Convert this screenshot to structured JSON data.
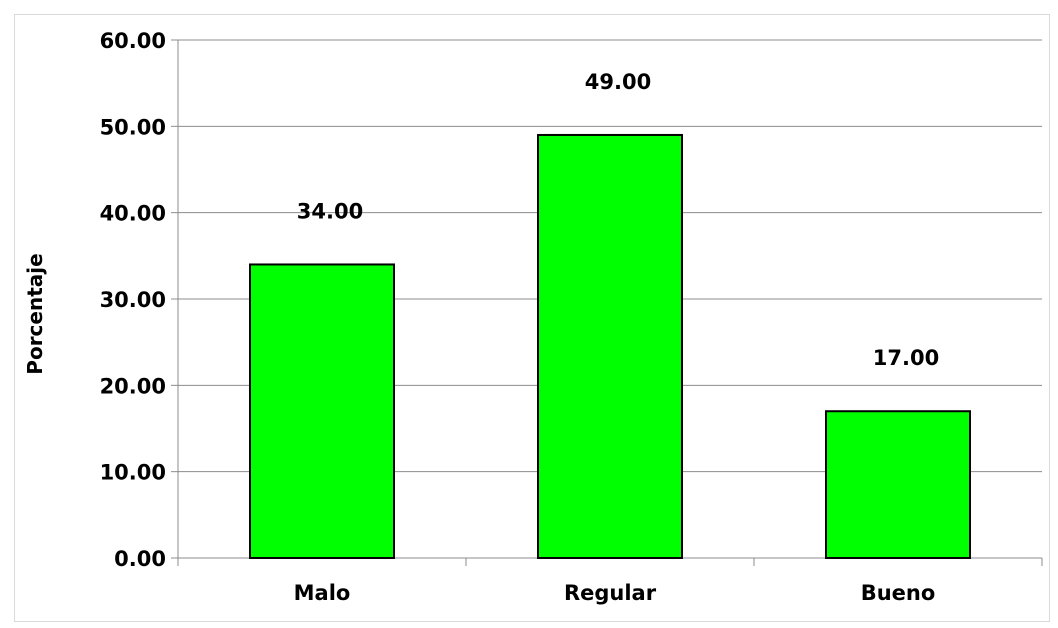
{
  "chart_data": {
    "type": "bar",
    "title": "",
    "xlabel": "",
    "ylabel": "Porcentaje",
    "categories": [
      "Malo",
      "Regular",
      "Bueno"
    ],
    "values": [
      34.0,
      49.0,
      17.0
    ],
    "value_labels": [
      "34.00",
      "49.00",
      "17.00"
    ],
    "ylim": [
      0,
      60
    ],
    "yticks": [
      0,
      10,
      20,
      30,
      40,
      50,
      60
    ],
    "ytick_labels": [
      "0.00",
      "10.00",
      "20.00",
      "30.00",
      "40.00",
      "50.00",
      "60.00"
    ],
    "grid": true,
    "legend": "none",
    "bar_color": "#00ff00",
    "bar_edge_color": "#000000"
  }
}
